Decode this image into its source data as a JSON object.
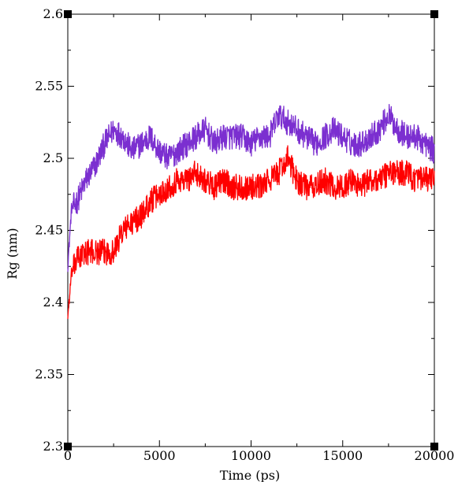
{
  "chart_data": {
    "type": "line",
    "title": "",
    "xlabel": "Time (ps)",
    "ylabel": "Rg (nm)",
    "xlim": [
      0,
      20000
    ],
    "ylim": [
      2.3,
      2.6
    ],
    "x_ticks": [
      0,
      5000,
      10000,
      15000,
      20000
    ],
    "x_tick_labels": [
      "0",
      "5000",
      "10000",
      "15000",
      "20000"
    ],
    "y_ticks": [
      2.3,
      2.35,
      2.4,
      2.45,
      2.5,
      2.55,
      2.6
    ],
    "y_tick_labels": [
      "2.3",
      "2.35",
      "2.4",
      "2.45",
      "2.5",
      "2.55",
      "2.6"
    ],
    "grid": false,
    "legend": "none",
    "series": [
      {
        "color": "#7b2fd0",
        "x": [
          0,
          200,
          500,
          1000,
          1500,
          2000,
          2500,
          3000,
          3500,
          4000,
          4500,
          5000,
          5500,
          6000,
          6500,
          7000,
          7500,
          8000,
          8500,
          9000,
          9500,
          10000,
          10500,
          11000,
          11500,
          12000,
          12500,
          13000,
          13500,
          14000,
          14500,
          15000,
          15500,
          16000,
          16500,
          17000,
          17500,
          18000,
          18500,
          19000,
          19500,
          20000
        ],
        "values": [
          2.425,
          2.465,
          2.47,
          2.485,
          2.495,
          2.51,
          2.52,
          2.515,
          2.505,
          2.51,
          2.515,
          2.505,
          2.5,
          2.505,
          2.51,
          2.515,
          2.52,
          2.51,
          2.515,
          2.515,
          2.515,
          2.51,
          2.515,
          2.515,
          2.53,
          2.525,
          2.52,
          2.515,
          2.51,
          2.515,
          2.52,
          2.515,
          2.51,
          2.51,
          2.515,
          2.52,
          2.53,
          2.52,
          2.515,
          2.515,
          2.51,
          2.505
        ]
      },
      {
        "color": "#ff0000",
        "x": [
          0,
          200,
          500,
          1000,
          1500,
          2000,
          2500,
          3000,
          3500,
          4000,
          4500,
          5000,
          5500,
          6000,
          6500,
          7000,
          7500,
          8000,
          8500,
          9000,
          9500,
          10000,
          10500,
          11000,
          11500,
          12000,
          12500,
          13000,
          13500,
          14000,
          14500,
          15000,
          15500,
          16000,
          16500,
          17000,
          17500,
          18000,
          18500,
          19000,
          19500,
          20000
        ],
        "values": [
          2.39,
          2.42,
          2.43,
          2.435,
          2.435,
          2.435,
          2.435,
          2.45,
          2.455,
          2.46,
          2.47,
          2.475,
          2.48,
          2.485,
          2.485,
          2.49,
          2.485,
          2.48,
          2.485,
          2.48,
          2.48,
          2.48,
          2.48,
          2.485,
          2.49,
          2.5,
          2.485,
          2.48,
          2.48,
          2.485,
          2.48,
          2.48,
          2.485,
          2.48,
          2.485,
          2.485,
          2.49,
          2.49,
          2.49,
          2.485,
          2.485,
          2.485
        ]
      }
    ]
  }
}
